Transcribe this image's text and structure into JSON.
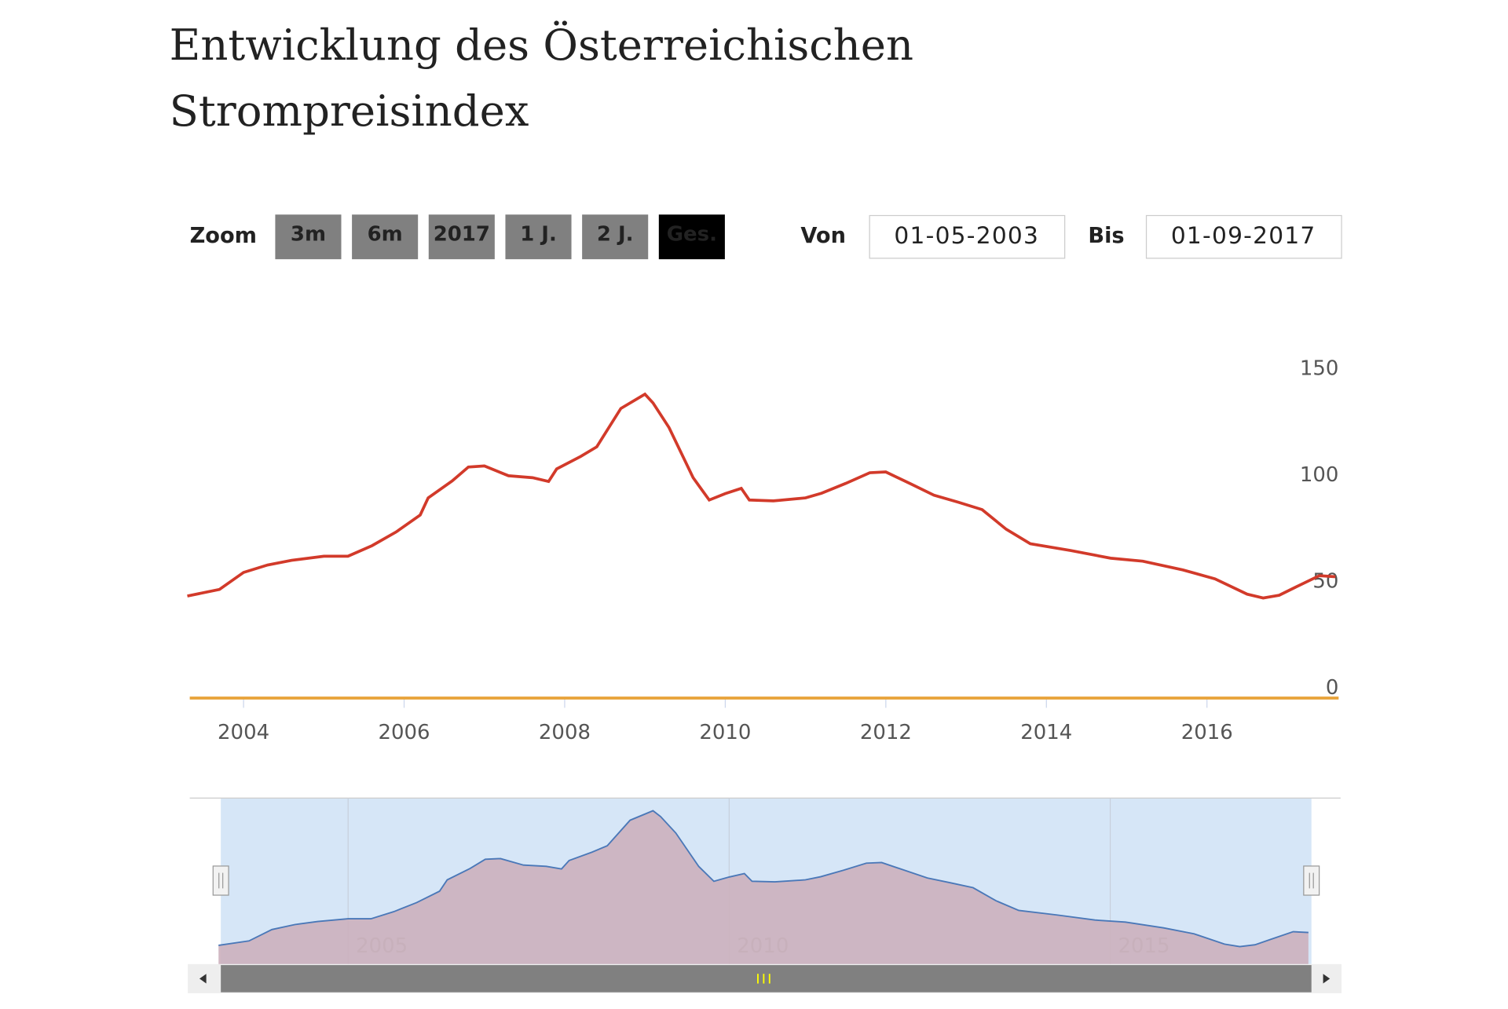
{
  "title": "Entwicklung des Österreichischen",
  "title_line2": "Strompreisindex",
  "zoom": {
    "label": "Zoom",
    "buttons": [
      "3m",
      "6m",
      "2017",
      "1 J.",
      "2 J.",
      "Ges."
    ],
    "active": 5
  },
  "range": {
    "from_label": "Von",
    "from": "01-05-2003",
    "to_label": "Bis",
    "to": "01-09-2017"
  },
  "chart_data": {
    "type": "line",
    "color": "#d23a2a",
    "zero_line_color": "#e8a33a",
    "x": [
      2003.3,
      2003.7,
      2004.0,
      2004.3,
      2004.6,
      2005.0,
      2005.3,
      2005.6,
      2005.9,
      2006.2,
      2006.3,
      2006.6,
      2006.8,
      2007.0,
      2007.3,
      2007.6,
      2007.8,
      2007.9,
      2008.2,
      2008.4,
      2008.7,
      2009.0,
      2009.1,
      2009.3,
      2009.6,
      2009.8,
      2010.0,
      2010.2,
      2010.3,
      2010.6,
      2011.0,
      2011.2,
      2011.5,
      2011.8,
      2012.0,
      2012.3,
      2012.6,
      2012.9,
      2013.2,
      2013.5,
      2013.8,
      2014.3,
      2014.8,
      2015.2,
      2015.7,
      2016.1,
      2016.5,
      2016.7,
      2016.9,
      2017.1,
      2017.4,
      2017.6
    ],
    "values": [
      47.9,
      51,
      59,
      62.5,
      64.7,
      66.6,
      66.6,
      71.6,
      78,
      86,
      94,
      102,
      108.5,
      109,
      104.4,
      103.5,
      101.7,
      107.6,
      113.5,
      118,
      136,
      142.7,
      138.6,
      127,
      103.5,
      93,
      96,
      98.5,
      93,
      92.6,
      94,
      96.2,
      100.8,
      105.8,
      106.2,
      100.8,
      95.3,
      92,
      88.5,
      79.3,
      72.5,
      69.3,
      65.7,
      64.3,
      60.2,
      56,
      48.8,
      47,
      48.3,
      52,
      57.5,
      57
    ],
    "xlim": [
      2003.33,
      2017.64
    ],
    "ylim": [
      0,
      150
    ],
    "xticks": [
      2004,
      2006,
      2008,
      2010,
      2012,
      2014,
      2016
    ],
    "yticks": [
      0,
      50,
      100,
      150
    ],
    "navigator": {
      "xticks": [
        2005,
        2010,
        2015
      ],
      "fill": "#ccb0bc",
      "mask": "#d6e6f7",
      "line": "#4a78b8"
    }
  }
}
